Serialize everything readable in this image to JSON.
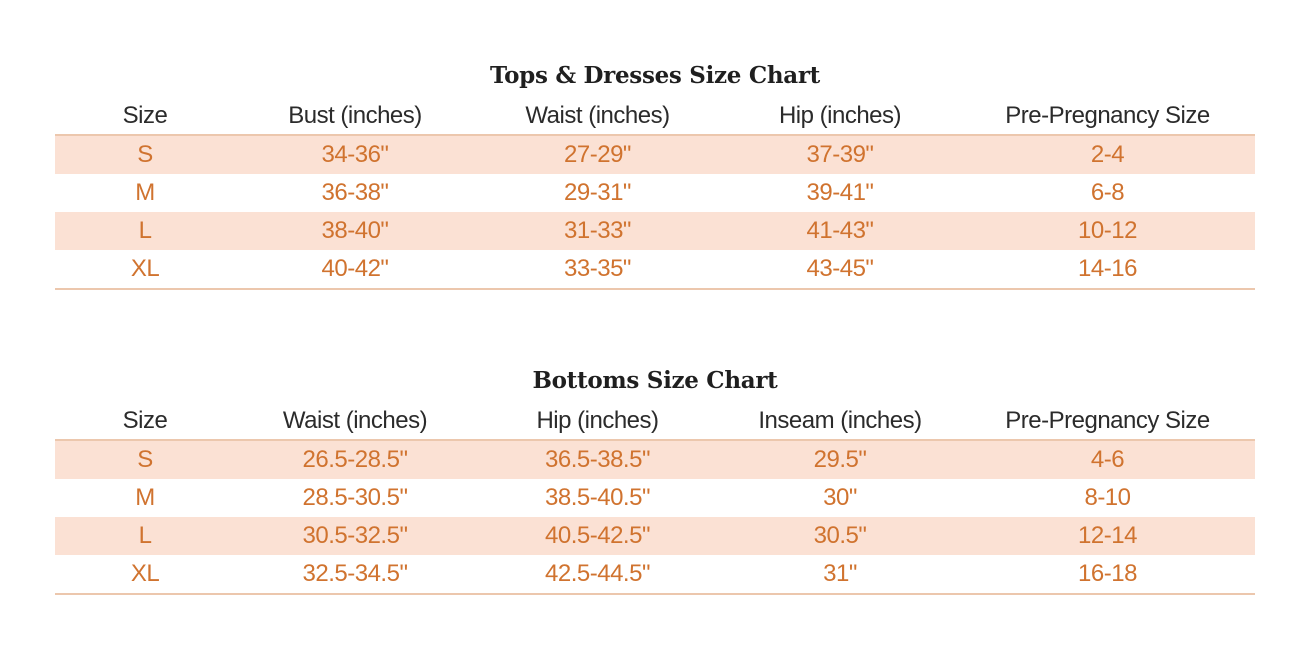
{
  "tops": {
    "title": "Tops & Dresses Size Chart",
    "headers": [
      "Size",
      "Bust (inches)",
      "Waist (inches)",
      "Hip (inches)",
      "Pre-Pregnancy Size"
    ],
    "rows": [
      [
        "S",
        "34-36\"",
        "27-29\"",
        "37-39\"",
        "2-4"
      ],
      [
        "M",
        "36-38\"",
        "29-31\"",
        "39-41\"",
        "6-8"
      ],
      [
        "L",
        "38-40\"",
        "31-33\"",
        "41-43\"",
        "10-12"
      ],
      [
        "XL",
        "40-42\"",
        "33-35\"",
        "43-45\"",
        "14-16"
      ]
    ]
  },
  "bottoms": {
    "title": "Bottoms Size Chart",
    "headers": [
      "Size",
      "Waist (inches)",
      "Hip (inches)",
      "Inseam (inches)",
      "Pre-Pregnancy Size"
    ],
    "rows": [
      [
        "S",
        "26.5-28.5\"",
        "36.5-38.5\"",
        "29.5\"",
        "4-6"
      ],
      [
        "M",
        "28.5-30.5\"",
        "38.5-40.5\"",
        "30\"",
        "8-10"
      ],
      [
        "L",
        "30.5-32.5\"",
        "40.5-42.5\"",
        "30.5\"",
        "12-14"
      ],
      [
        "XL",
        "32.5-34.5\"",
        "42.5-44.5\"",
        "31\"",
        "16-18"
      ]
    ]
  },
  "colors": {
    "value_text": "#d0732f",
    "stripe": "#fbe1d4",
    "rule": "#ecc7ad",
    "header_text": "#2b2b2b"
  }
}
